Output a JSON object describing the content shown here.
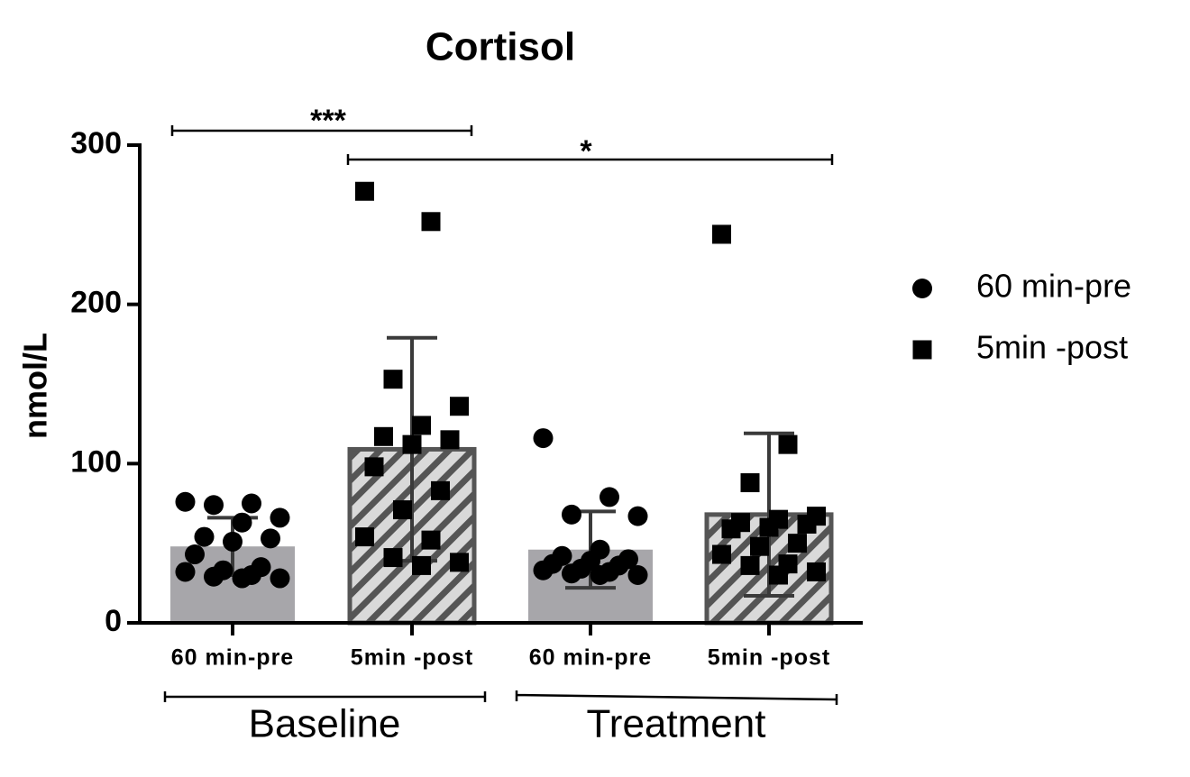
{
  "chart_data": {
    "type": "bar",
    "title": "Cortisol",
    "y_label": "nmol/L",
    "categories": [
      "60 min-pre",
      "5min -post",
      "60 min-pre",
      "5min -post"
    ],
    "groups": [
      "Baseline",
      "Treatment"
    ],
    "ylim": [
      0,
      300
    ],
    "yticks": [
      0,
      100,
      200,
      300
    ],
    "annotations": [
      "***",
      "*"
    ],
    "series": [
      {
        "name": "60 min-pre",
        "marker": "circle",
        "color": "#000000",
        "bar_color": "#a7a6aa",
        "hatch": false,
        "values": [
          48,
          null,
          46,
          null
        ],
        "errors": [
          18,
          null,
          24,
          null
        ],
        "points": [
          [
            76,
            75,
            74,
            66,
            63,
            54,
            53,
            51,
            43,
            35,
            33,
            32,
            30,
            29,
            28,
            28
          ],
          null,
          [
            116,
            79,
            68,
            67,
            46,
            42,
            40,
            39,
            37,
            36,
            34,
            33,
            32,
            31,
            30,
            30
          ],
          null
        ]
      },
      {
        "name": "5min -post",
        "marker": "square",
        "color": "#000000",
        "bar_color": "#d9d9d9",
        "hatch": true,
        "values": [
          null,
          109,
          null,
          68
        ],
        "errors": [
          null,
          70,
          null,
          51
        ],
        "points": [
          null,
          [
            271,
            252,
            153,
            136,
            124,
            117,
            115,
            112,
            98,
            83,
            71,
            54,
            52,
            41,
            38,
            36
          ],
          null,
          [
            244,
            112,
            88,
            67,
            65,
            63,
            62,
            60,
            59,
            50,
            48,
            43,
            37,
            36,
            32,
            30
          ]
        ]
      }
    ]
  }
}
